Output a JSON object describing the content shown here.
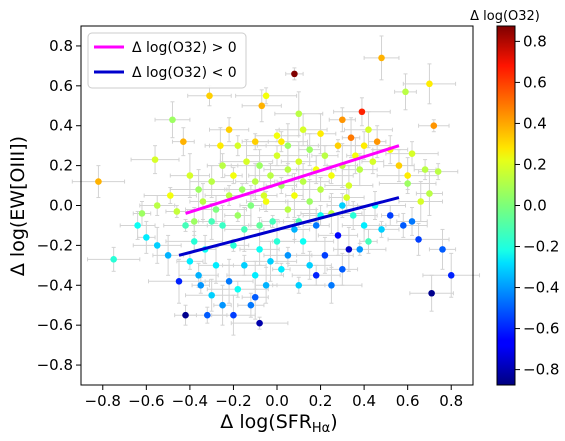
{
  "chart_data": {
    "type": "scatter",
    "title": "",
    "xlabel": "Δ log(SFR",
    "xlabel_sub": "Hα",
    "xlabel_end": ")",
    "ylabel": "Δ log(EW[OIII])",
    "xlim": [
      -0.9,
      0.9
    ],
    "ylim": [
      -0.9,
      0.9
    ],
    "x_ticks": [
      -0.8,
      -0.6,
      -0.4,
      -0.2,
      0.0,
      0.2,
      0.4,
      0.6,
      0.8
    ],
    "y_ticks": [
      -0.8,
      -0.6,
      -0.4,
      -0.2,
      0.0,
      0.2,
      0.4,
      0.6,
      0.8
    ],
    "x_tick_labels": [
      "−0.8",
      "−0.6",
      "−0.4",
      "−0.2",
      "0.0",
      "0.2",
      "0.4",
      "0.6",
      "0.8"
    ],
    "y_tick_labels": [
      "−0.8",
      "−0.6",
      "−0.4",
      "−0.2",
      "0.0",
      "0.2",
      "0.4",
      "0.6",
      "0.8"
    ],
    "grid": false,
    "legend_position": "upper-left",
    "colorbar": {
      "label": "Δ log(O32)",
      "range": [
        -0.875,
        0.875
      ],
      "ticks": [
        -0.8,
        -0.6,
        -0.4,
        -0.2,
        0.0,
        0.2,
        0.4,
        0.6,
        0.8
      ],
      "tick_labels": [
        "−0.8",
        "−0.6",
        "−0.4",
        "−0.2",
        "0.0",
        "0.2",
        "0.4",
        "0.6",
        "0.8"
      ],
      "colormap": "jet"
    },
    "fit_lines": [
      {
        "name": "Δ log(O32) > 0",
        "color": "#ff00ff",
        "x": [
          -0.42,
          0.56
        ],
        "y": [
          -0.04,
          0.3
        ]
      },
      {
        "name": "Δ log(O32) < 0",
        "color": "#0000cd",
        "x": [
          -0.45,
          0.56
        ],
        "y": [
          -0.25,
          0.04
        ]
      }
    ],
    "error_bar_color": "#d3d3d3",
    "points": [
      {
        "x": 0.08,
        "y": 0.66,
        "c": 0.88
      },
      {
        "x": 0.48,
        "y": 0.74,
        "c": 0.35
      },
      {
        "x": 0.7,
        "y": 0.61,
        "c": 0.25
      },
      {
        "x": 0.59,
        "y": 0.57,
        "c": 0.1
      },
      {
        "x": -0.07,
        "y": 0.5,
        "c": 0.35
      },
      {
        "x": 0.39,
        "y": 0.47,
        "c": 0.6
      },
      {
        "x": 0.3,
        "y": 0.43,
        "c": 0.4
      },
      {
        "x": -0.31,
        "y": 0.55,
        "c": 0.3
      },
      {
        "x": -0.05,
        "y": 0.55,
        "c": 0.2
      },
      {
        "x": 0.72,
        "y": 0.4,
        "c": 0.4
      },
      {
        "x": 0.1,
        "y": 0.46,
        "c": 0.1
      },
      {
        "x": 0.34,
        "y": 0.34,
        "c": 0.45
      },
      {
        "x": -0.48,
        "y": 0.43,
        "c": 0.05
      },
      {
        "x": -0.82,
        "y": 0.12,
        "c": 0.35
      },
      {
        "x": -0.43,
        "y": 0.32,
        "c": 0.35
      },
      {
        "x": -0.22,
        "y": 0.38,
        "c": 0.3
      },
      {
        "x": -0.18,
        "y": 0.3,
        "c": 0.15
      },
      {
        "x": -0.1,
        "y": 0.32,
        "c": 0.3
      },
      {
        "x": 0.0,
        "y": 0.35,
        "c": 0.2
      },
      {
        "x": 0.05,
        "y": 0.3,
        "c": 0.05
      },
      {
        "x": 0.2,
        "y": 0.36,
        "c": 0.25
      },
      {
        "x": 0.42,
        "y": 0.38,
        "c": 0.15
      },
      {
        "x": 0.46,
        "y": 0.32,
        "c": 0.4
      },
      {
        "x": 0.52,
        "y": 0.28,
        "c": 0.2
      },
      {
        "x": 0.62,
        "y": 0.26,
        "c": 0.15
      },
      {
        "x": 0.68,
        "y": 0.18,
        "c": 0.1
      },
      {
        "x": 0.74,
        "y": 0.17,
        "c": 0.1
      },
      {
        "x": 0.6,
        "y": 0.11,
        "c": 0.05
      },
      {
        "x": 0.7,
        "y": 0.06,
        "c": 0.1
      },
      {
        "x": 0.66,
        "y": 0.02,
        "c": 0.15
      },
      {
        "x": 0.6,
        "y": 0.15,
        "c": 0.25
      },
      {
        "x": 0.56,
        "y": 0.2,
        "c": 0.3
      },
      {
        "x": -0.56,
        "y": 0.23,
        "c": 0.15
      },
      {
        "x": -0.62,
        "y": -0.04,
        "c": 0.05
      },
      {
        "x": -0.55,
        "y": 0.0,
        "c": 0.1
      },
      {
        "x": -0.49,
        "y": 0.05,
        "c": 0.2
      },
      {
        "x": -0.46,
        "y": -0.03,
        "c": 0.12
      },
      {
        "x": -0.4,
        "y": 0.15,
        "c": 0.15
      },
      {
        "x": -0.36,
        "y": 0.08,
        "c": 0.05
      },
      {
        "x": -0.34,
        "y": 0.02,
        "c": 0.1
      },
      {
        "x": -0.3,
        "y": 0.12,
        "c": 0.1
      },
      {
        "x": -0.28,
        "y": -0.02,
        "c": 0.0
      },
      {
        "x": -0.25,
        "y": 0.2,
        "c": 0.1
      },
      {
        "x": -0.22,
        "y": 0.05,
        "c": 0.1
      },
      {
        "x": -0.2,
        "y": 0.15,
        "c": 0.2
      },
      {
        "x": -0.16,
        "y": 0.08,
        "c": 0.05
      },
      {
        "x": -0.14,
        "y": 0.22,
        "c": 0.15
      },
      {
        "x": -0.12,
        "y": 0.0,
        "c": 0.0
      },
      {
        "x": -0.1,
        "y": 0.12,
        "c": 0.1
      },
      {
        "x": -0.08,
        "y": 0.2,
        "c": 0.05
      },
      {
        "x": -0.06,
        "y": 0.05,
        "c": 0.15
      },
      {
        "x": -0.03,
        "y": 0.15,
        "c": 0.1
      },
      {
        "x": 0.0,
        "y": 0.25,
        "c": 0.15
      },
      {
        "x": 0.02,
        "y": 0.1,
        "c": 0.05
      },
      {
        "x": 0.05,
        "y": 0.18,
        "c": 0.1
      },
      {
        "x": 0.08,
        "y": 0.05,
        "c": 0.2
      },
      {
        "x": 0.1,
        "y": 0.22,
        "c": 0.15
      },
      {
        "x": 0.12,
        "y": 0.12,
        "c": 0.1
      },
      {
        "x": 0.15,
        "y": 0.28,
        "c": 0.05
      },
      {
        "x": 0.18,
        "y": 0.18,
        "c": 0.2
      },
      {
        "x": 0.2,
        "y": 0.08,
        "c": 0.1
      },
      {
        "x": 0.22,
        "y": 0.25,
        "c": 0.1
      },
      {
        "x": 0.25,
        "y": 0.15,
        "c": 0.2
      },
      {
        "x": 0.28,
        "y": 0.3,
        "c": 0.3
      },
      {
        "x": 0.3,
        "y": 0.2,
        "c": 0.1
      },
      {
        "x": 0.33,
        "y": 0.1,
        "c": 0.15
      },
      {
        "x": 0.36,
        "y": 0.25,
        "c": 0.2
      },
      {
        "x": 0.38,
        "y": 0.18,
        "c": 0.1
      },
      {
        "x": 0.4,
        "y": 0.3,
        "c": 0.25
      },
      {
        "x": 0.44,
        "y": 0.22,
        "c": 0.15
      },
      {
        "x": -0.05,
        "y": 0.02,
        "c": 0.2
      },
      {
        "x": 0.05,
        "y": -0.02,
        "c": 0.1
      },
      {
        "x": -0.18,
        "y": -0.05,
        "c": 0.05
      },
      {
        "x": 0.15,
        "y": 0.02,
        "c": 0.05
      },
      {
        "x": 0.25,
        "y": -0.04,
        "c": 0.1
      },
      {
        "x": -0.26,
        "y": 0.3,
        "c": 0.25
      },
      {
        "x": 0.12,
        "y": 0.38,
        "c": 0.15
      },
      {
        "x": -0.38,
        "y": -0.08,
        "c": 0.05
      },
      {
        "x": 0.32,
        "y": 0.04,
        "c": 0.15
      },
      {
        "x": 0.02,
        "y": 0.32,
        "c": 0.25
      },
      {
        "x": -0.08,
        "y": -0.1,
        "c": -0.05
      },
      {
        "x": 0.1,
        "y": -0.08,
        "c": -0.08
      },
      {
        "x": 0.8,
        "y": -0.35,
        "c": -0.6
      },
      {
        "x": 0.76,
        "y": -0.22,
        "c": -0.5
      },
      {
        "x": 0.71,
        "y": -0.44,
        "c": -0.85
      },
      {
        "x": 0.65,
        "y": -0.17,
        "c": -0.55
      },
      {
        "x": 0.62,
        "y": -0.08,
        "c": -0.45
      },
      {
        "x": 0.58,
        "y": -0.1,
        "c": -0.5
      },
      {
        "x": 0.52,
        "y": -0.05,
        "c": -0.55
      },
      {
        "x": 0.48,
        "y": -0.12,
        "c": -0.3
      },
      {
        "x": 0.38,
        "y": -0.22,
        "c": -0.4
      },
      {
        "x": 0.33,
        "y": -0.22,
        "c": -0.75
      },
      {
        "x": 0.28,
        "y": -0.15,
        "c": -0.65
      },
      {
        "x": 0.22,
        "y": -0.25,
        "c": -0.55
      },
      {
        "x": 0.18,
        "y": -0.1,
        "c": -0.45
      },
      {
        "x": 0.15,
        "y": -0.3,
        "c": -0.3
      },
      {
        "x": 0.12,
        "y": -0.18,
        "c": -0.2
      },
      {
        "x": 0.08,
        "y": -0.12,
        "c": -0.35
      },
      {
        "x": 0.05,
        "y": -0.25,
        "c": -0.4
      },
      {
        "x": 0.02,
        "y": -0.32,
        "c": -0.25
      },
      {
        "x": 0.0,
        "y": -0.18,
        "c": -0.15
      },
      {
        "x": -0.03,
        "y": -0.28,
        "c": -0.3
      },
      {
        "x": -0.05,
        "y": -0.4,
        "c": -0.35
      },
      {
        "x": -0.08,
        "y": -0.22,
        "c": -0.2
      },
      {
        "x": -0.1,
        "y": -0.35,
        "c": -0.25
      },
      {
        "x": -0.12,
        "y": -0.5,
        "c": -0.45
      },
      {
        "x": -0.15,
        "y": -0.3,
        "c": -0.3
      },
      {
        "x": -0.18,
        "y": -0.42,
        "c": -0.2
      },
      {
        "x": -0.2,
        "y": -0.2,
        "c": -0.15
      },
      {
        "x": -0.22,
        "y": -0.38,
        "c": -0.45
      },
      {
        "x": -0.25,
        "y": -0.5,
        "c": -0.4
      },
      {
        "x": -0.28,
        "y": -0.3,
        "c": -0.25
      },
      {
        "x": -0.3,
        "y": -0.45,
        "c": -0.3
      },
      {
        "x": -0.33,
        "y": -0.22,
        "c": -0.2
      },
      {
        "x": -0.36,
        "y": -0.35,
        "c": -0.35
      },
      {
        "x": -0.38,
        "y": -0.18,
        "c": -0.15
      },
      {
        "x": -0.4,
        "y": -0.28,
        "c": -0.25
      },
      {
        "x": -0.42,
        "y": -0.1,
        "c": -0.1
      },
      {
        "x": -0.45,
        "y": -0.38,
        "c": -0.6
      },
      {
        "x": -0.5,
        "y": -0.25,
        "c": -0.35
      },
      {
        "x": -0.55,
        "y": -0.2,
        "c": -0.3
      },
      {
        "x": -0.6,
        "y": -0.16,
        "c": -0.25
      },
      {
        "x": -0.64,
        "y": -0.1,
        "c": -0.2
      },
      {
        "x": -0.75,
        "y": -0.27,
        "c": -0.15
      },
      {
        "x": -0.42,
        "y": -0.55,
        "c": -0.85
      },
      {
        "x": -0.32,
        "y": -0.55,
        "c": -0.5
      },
      {
        "x": -0.08,
        "y": -0.59,
        "c": -0.8
      },
      {
        "x": -0.1,
        "y": -0.46,
        "c": -0.5
      },
      {
        "x": -0.2,
        "y": -0.55,
        "c": -0.55
      },
      {
        "x": 0.25,
        "y": -0.4,
        "c": -0.45
      },
      {
        "x": 0.3,
        "y": -0.32,
        "c": -0.5
      },
      {
        "x": 0.35,
        "y": -0.05,
        "c": -0.15
      },
      {
        "x": 0.42,
        "y": -0.18,
        "c": -0.1
      },
      {
        "x": 0.2,
        "y": -0.05,
        "c": -0.2
      },
      {
        "x": 0.1,
        "y": -0.4,
        "c": -0.3
      },
      {
        "x": -0.02,
        "y": -0.08,
        "c": -0.1
      },
      {
        "x": -0.15,
        "y": -0.12,
        "c": -0.1
      },
      {
        "x": -0.25,
        "y": -0.1,
        "c": -0.12
      },
      {
        "x": -0.3,
        "y": -0.08,
        "c": -0.1
      },
      {
        "x": 0.4,
        "y": -0.1,
        "c": -0.25
      },
      {
        "x": 0.45,
        "y": 0.0,
        "c": -0.2
      },
      {
        "x": 0.3,
        "y": 0.0,
        "c": -0.3
      },
      {
        "x": 0.18,
        "y": -0.35,
        "c": -0.6
      },
      {
        "x": -0.35,
        "y": -0.4,
        "c": -0.4
      }
    ]
  }
}
